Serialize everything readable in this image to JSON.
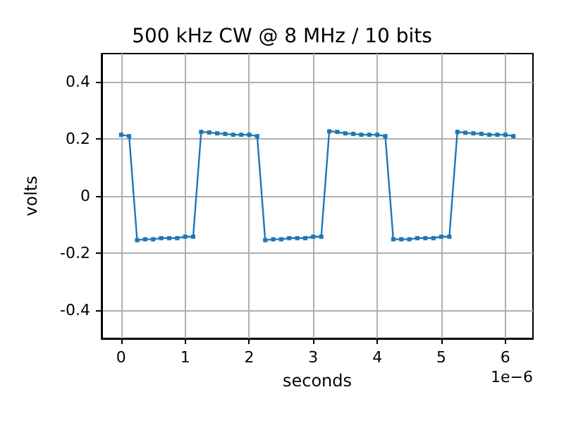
{
  "chart_data": {
    "type": "line",
    "title": "500 kHz CW @ 8 MHz / 10 bits",
    "xlabel": "seconds",
    "ylabel": "volts",
    "annotations": [
      "1e−6"
    ],
    "x": [
      0,
      0.125,
      0.25,
      0.375,
      0.5,
      0.625,
      0.75,
      0.875,
      1,
      1.125,
      1.25,
      1.375,
      1.5,
      1.625,
      1.75,
      1.875,
      2,
      2.125,
      2.25,
      2.375,
      2.5,
      2.625,
      2.75,
      2.875,
      3,
      3.125,
      3.25,
      3.375,
      3.5,
      3.625,
      3.75,
      3.875,
      4,
      4.125,
      4.25,
      4.375,
      4.5,
      4.625,
      4.75,
      4.875,
      5,
      5.125,
      5.25,
      5.375,
      5.5,
      5.625,
      5.75,
      5.875,
      6,
      6.125
    ],
    "series": [
      {
        "color": "#1f77b4",
        "values": [
          0.215,
          0.21,
          -0.155,
          -0.152,
          -0.152,
          -0.148,
          -0.148,
          -0.148,
          -0.143,
          -0.143,
          0.225,
          0.223,
          0.22,
          0.218,
          0.215,
          0.215,
          0.215,
          0.21,
          -0.155,
          -0.152,
          -0.152,
          -0.148,
          -0.148,
          -0.148,
          -0.143,
          -0.143,
          0.227,
          0.225,
          0.22,
          0.218,
          0.215,
          0.215,
          0.215,
          0.21,
          -0.152,
          -0.152,
          -0.152,
          -0.148,
          -0.148,
          -0.148,
          -0.143,
          -0.143,
          0.225,
          0.222,
          0.22,
          0.218,
          0.215,
          0.215,
          0.215,
          0.21
        ]
      }
    ],
    "xlim": [
      -0.306,
      6.431
    ],
    "ylim": [
      -0.5,
      0.5
    ],
    "xticks": [
      0,
      1,
      2,
      3,
      4,
      5,
      6
    ],
    "yticks": [
      -0.4,
      -0.2,
      0,
      0.2,
      0.4
    ],
    "grid": true,
    "marker": "square",
    "line_style": "solid"
  }
}
